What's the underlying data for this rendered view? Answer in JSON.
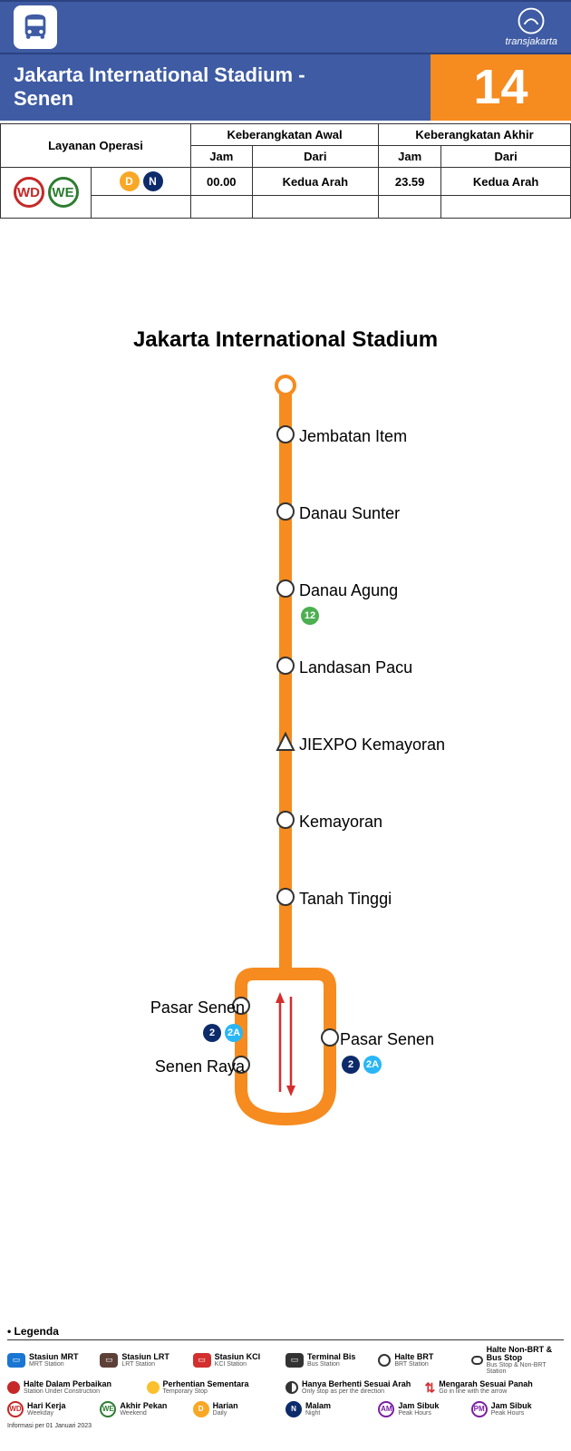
{
  "brand": {
    "name": "transjakarta"
  },
  "route": {
    "title_line1": "Jakarta International Stadium -",
    "title_line2": "Senen",
    "number": "14",
    "terminus_title": "Jakarta International Stadium",
    "line_color": "#f68b1f",
    "line_width": 14
  },
  "schedule": {
    "headers": {
      "ops": "Layanan Operasi",
      "first_dep": "Keberangkatan Awal",
      "last_dep": "Keberangkatan Akhir",
      "time": "Jam",
      "from": "Dari"
    },
    "row1": {
      "badges_main": [
        {
          "text": "WD",
          "border": "#c62828",
          "color": "#c62828",
          "bg": "#ffffff"
        },
        {
          "text": "WE",
          "border": "#2e7d32",
          "color": "#2e7d32",
          "bg": "#ffffff"
        }
      ],
      "badges_time": [
        {
          "text": "D",
          "bg": "#f9a825",
          "color": "#ffffff"
        },
        {
          "text": "N",
          "bg": "#0d2b6b",
          "color": "#ffffff"
        }
      ],
      "first_time": "00.00",
      "first_from": "Kedua Arah",
      "last_time": "23.59",
      "last_from": "Kedua Arah"
    }
  },
  "stops": [
    {
      "name": "Jembatan Item",
      "side": "right",
      "type": "circle",
      "connections": []
    },
    {
      "name": "Danau Sunter",
      "side": "right",
      "type": "circle",
      "connections": []
    },
    {
      "name": "Danau Agung",
      "side": "right",
      "type": "circle",
      "connections": [
        {
          "text": "12",
          "bg": "#4caf50",
          "color": "#ffffff"
        }
      ]
    },
    {
      "name": "Landasan Pacu",
      "side": "right",
      "type": "circle",
      "connections": []
    },
    {
      "name": "JIEXPO Kemayoran",
      "side": "right",
      "type": "triangle",
      "connections": []
    },
    {
      "name": "Kemayoran",
      "side": "right",
      "type": "circle",
      "connections": []
    },
    {
      "name": "Tanah Tinggi",
      "side": "right",
      "type": "circle",
      "connections": []
    }
  ],
  "loop": {
    "left_stops": [
      {
        "name": "Pasar Senen",
        "connections": [
          {
            "text": "2",
            "bg": "#0d2b6b",
            "color": "#ffffff"
          },
          {
            "text": "2A",
            "bg": "#29b6f6",
            "color": "#ffffff"
          }
        ]
      },
      {
        "name": "Senen Raya",
        "connections": []
      }
    ],
    "right_stops": [
      {
        "name": "Pasar Senen",
        "connections": [
          {
            "text": "2",
            "bg": "#0d2b6b",
            "color": "#ffffff"
          },
          {
            "text": "2A",
            "bg": "#29b6f6",
            "color": "#ffffff"
          }
        ]
      }
    ]
  },
  "legend": {
    "title": "Legenda",
    "row1": [
      {
        "t1": "Stasiun MRT",
        "t2": "MRT Station",
        "icon": "station",
        "color": "#1976d2"
      },
      {
        "t1": "Stasiun LRT",
        "t2": "LRT Station",
        "icon": "station",
        "color": "#5d4037"
      },
      {
        "t1": "Stasiun KCI",
        "t2": "KCI Station",
        "icon": "station",
        "color": "#d32f2f"
      },
      {
        "t1": "Terminal Bis",
        "t2": "Bus Station",
        "icon": "station",
        "color": "#333333"
      },
      {
        "t1": "Halte BRT",
        "t2": "BRT Station",
        "icon": "circle",
        "color": "#333333"
      },
      {
        "t1": "Halte Non-BRT & Bus Stop",
        "t2": "Bus Stop & Non-BRT Station",
        "icon": "pill",
        "color": "#333333"
      }
    ],
    "row2": [
      {
        "t1": "Halte Dalam Perbaikan",
        "t2": "Station Under Construction",
        "icon": "dot",
        "color": "#c62828"
      },
      {
        "t1": "Perhentian Sementara",
        "t2": "Temporary Stop",
        "icon": "dot",
        "color": "#fbc02d"
      },
      {
        "t1": "Hanya Berhenti Sesuai Arah",
        "t2": "Only stop as per the direction",
        "icon": "half",
        "color": "#333333"
      },
      {
        "t1": "Mengarah Sesuai Panah",
        "t2": "Go in line with the arrow",
        "icon": "arrow",
        "color": "#d32f2f"
      }
    ],
    "row3": [
      {
        "text": "WD",
        "border": "#c62828",
        "tc": "#c62828",
        "bg": "#fff",
        "t1": "Hari Kerja",
        "t2": "Weekday"
      },
      {
        "text": "WE",
        "border": "#2e7d32",
        "tc": "#2e7d32",
        "bg": "#fff",
        "t1": "Akhir Pekan",
        "t2": "Weekend"
      },
      {
        "text": "D",
        "border": "#f9a825",
        "tc": "#fff",
        "bg": "#f9a825",
        "t1": "Harian",
        "t2": "Daily"
      },
      {
        "text": "N",
        "border": "#0d2b6b",
        "tc": "#fff",
        "bg": "#0d2b6b",
        "t1": "Malam",
        "t2": "Night"
      },
      {
        "text": "AM",
        "border": "#7b1fa2",
        "tc": "#7b1fa2",
        "bg": "#fff",
        "t1": "Jam Sibuk",
        "t2": "Peak Hours"
      },
      {
        "text": "PM",
        "border": "#7b1fa2",
        "tc": "#7b1fa2",
        "bg": "#fff",
        "t1": "Jam Sibuk",
        "t2": "Peak Hours"
      }
    ],
    "footer": "Informasi per 01 Januari 2023"
  }
}
